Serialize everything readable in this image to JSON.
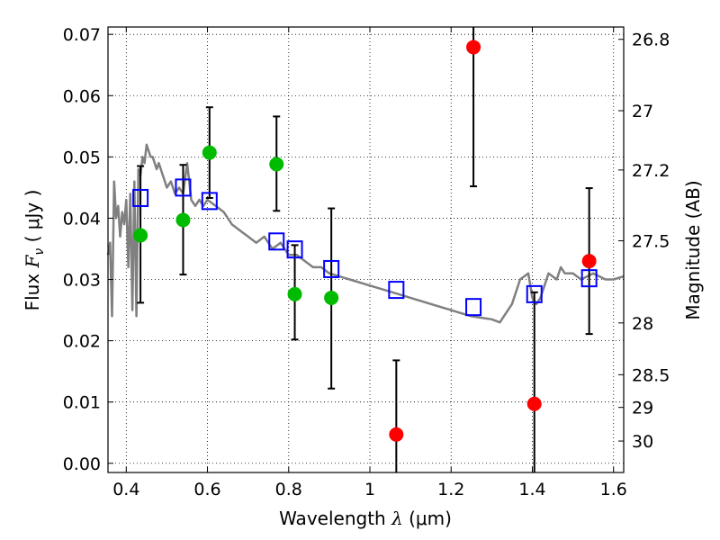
{
  "chart_data": {
    "type": "scatter",
    "xlabel": "Wavelength  λ (μm)",
    "ylabel": "Flux  F_ν  ( μJy )",
    "ylabel_parts": {
      "prefix": "Flux  ",
      "symbol": "F",
      "sub": "ν",
      "suffix": "  ( μJy )"
    },
    "xlabel_parts": {
      "prefix": "Wavelength  ",
      "symbol": "λ",
      "suffix": " (μm)"
    },
    "ylabel_right": "Magnitude (AB)",
    "xlim": [
      0.355,
      1.625
    ],
    "ylim": [
      -0.0015,
      0.0712
    ],
    "grid": true,
    "x_ticks": [
      0.4,
      0.6,
      0.8,
      1.0,
      1.2,
      1.4,
      1.6
    ],
    "x_tick_labels": [
      "0.4",
      "0.6",
      "0.8",
      "1",
      "1.2",
      "1.4",
      "1.6"
    ],
    "y_ticks": [
      0.0,
      0.01,
      0.02,
      0.03,
      0.04,
      0.05,
      0.06,
      0.07
    ],
    "y_tick_labels": [
      "0.00",
      "0.01",
      "0.02",
      "0.03",
      "0.04",
      "0.05",
      "0.06",
      "0.07"
    ],
    "right_ticks": [
      {
        "mag": 26.8,
        "label": "26.8"
      },
      {
        "mag": 27.0,
        "label": "27"
      },
      {
        "mag": 27.2,
        "label": "27.2"
      },
      {
        "mag": 27.5,
        "label": "27.5"
      },
      {
        "mag": 28.0,
        "label": "28"
      },
      {
        "mag": 28.5,
        "label": "28.5"
      },
      {
        "mag": 29.0,
        "label": "29"
      },
      {
        "mag": 30.0,
        "label": "30"
      }
    ],
    "colors": {
      "green": "#00bb00",
      "red": "#ff0000",
      "square": "#0000ff",
      "model": "#808080",
      "errorbar": "#000000"
    },
    "series": [
      {
        "name": "model SED",
        "kind": "line",
        "x": [
          0.355,
          0.36,
          0.365,
          0.37,
          0.375,
          0.38,
          0.385,
          0.39,
          0.395,
          0.4,
          0.405,
          0.41,
          0.415,
          0.42,
          0.425,
          0.43,
          0.435,
          0.44,
          0.445,
          0.45,
          0.455,
          0.46,
          0.465,
          0.47,
          0.475,
          0.48,
          0.485,
          0.49,
          0.495,
          0.5,
          0.51,
          0.52,
          0.53,
          0.54,
          0.55,
          0.56,
          0.57,
          0.58,
          0.59,
          0.6,
          0.62,
          0.64,
          0.66,
          0.68,
          0.7,
          0.72,
          0.74,
          0.76,
          0.78,
          0.8,
          0.82,
          0.84,
          0.86,
          0.88,
          0.9,
          0.95,
          1.0,
          1.05,
          1.1,
          1.15,
          1.2,
          1.25,
          1.3,
          1.32,
          1.35,
          1.37,
          1.39,
          1.4,
          1.41,
          1.42,
          1.44,
          1.46,
          1.47,
          1.48,
          1.5,
          1.52,
          1.55,
          1.58,
          1.6,
          1.625
        ],
        "y": [
          0.034,
          0.036,
          0.024,
          0.046,
          0.04,
          0.042,
          0.037,
          0.041,
          0.039,
          0.043,
          0.032,
          0.044,
          0.025,
          0.046,
          0.024,
          0.048,
          0.047,
          0.05,
          0.049,
          0.052,
          0.051,
          0.05,
          0.05,
          0.049,
          0.048,
          0.049,
          0.048,
          0.047,
          0.046,
          0.045,
          0.046,
          0.044,
          0.045,
          0.044,
          0.049,
          0.043,
          0.042,
          0.043,
          0.042,
          0.043,
          0.042,
          0.041,
          0.039,
          0.038,
          0.037,
          0.036,
          0.037,
          0.035,
          0.036,
          0.034,
          0.034,
          0.033,
          0.032,
          0.032,
          0.031,
          0.03,
          0.029,
          0.028,
          0.027,
          0.026,
          0.025,
          0.024,
          0.0235,
          0.023,
          0.026,
          0.03,
          0.031,
          0.027,
          0.026,
          0.027,
          0.031,
          0.03,
          0.032,
          0.031,
          0.031,
          0.03,
          0.031,
          0.03,
          0.03,
          0.0305
        ]
      },
      {
        "name": "model photometry",
        "kind": "square",
        "x": [
          0.435,
          0.54,
          0.605,
          0.77,
          0.815,
          0.905,
          1.065,
          1.255,
          1.405,
          1.54
        ],
        "y": [
          0.0433,
          0.045,
          0.0428,
          0.0362,
          0.0349,
          0.0317,
          0.0283,
          0.0255,
          0.0276,
          0.0302
        ]
      },
      {
        "name": "detections",
        "kind": "circle",
        "color": "green",
        "x": [
          0.435,
          0.54,
          0.605,
          0.77,
          0.815,
          0.905
        ],
        "y": [
          0.0372,
          0.0397,
          0.0507,
          0.0488,
          0.0276,
          0.027
        ],
        "err_low": [
          0.0262,
          0.0308,
          0.0433,
          0.0412,
          0.0202,
          0.0122
        ],
        "err_high": [
          0.0485,
          0.0487,
          0.0581,
          0.0566,
          0.0356,
          0.0416
        ]
      },
      {
        "name": "upper / low S/N",
        "kind": "circle",
        "color": "red",
        "x": [
          1.065,
          1.255,
          1.405,
          1.54
        ],
        "y": [
          0.0047,
          0.0679,
          0.0097,
          0.033
        ],
        "err_low": [
          -0.0015,
          0.0452,
          -0.0015,
          0.0211
        ],
        "err_high": [
          0.0168,
          0.0712,
          0.0279,
          0.0449
        ]
      }
    ]
  }
}
